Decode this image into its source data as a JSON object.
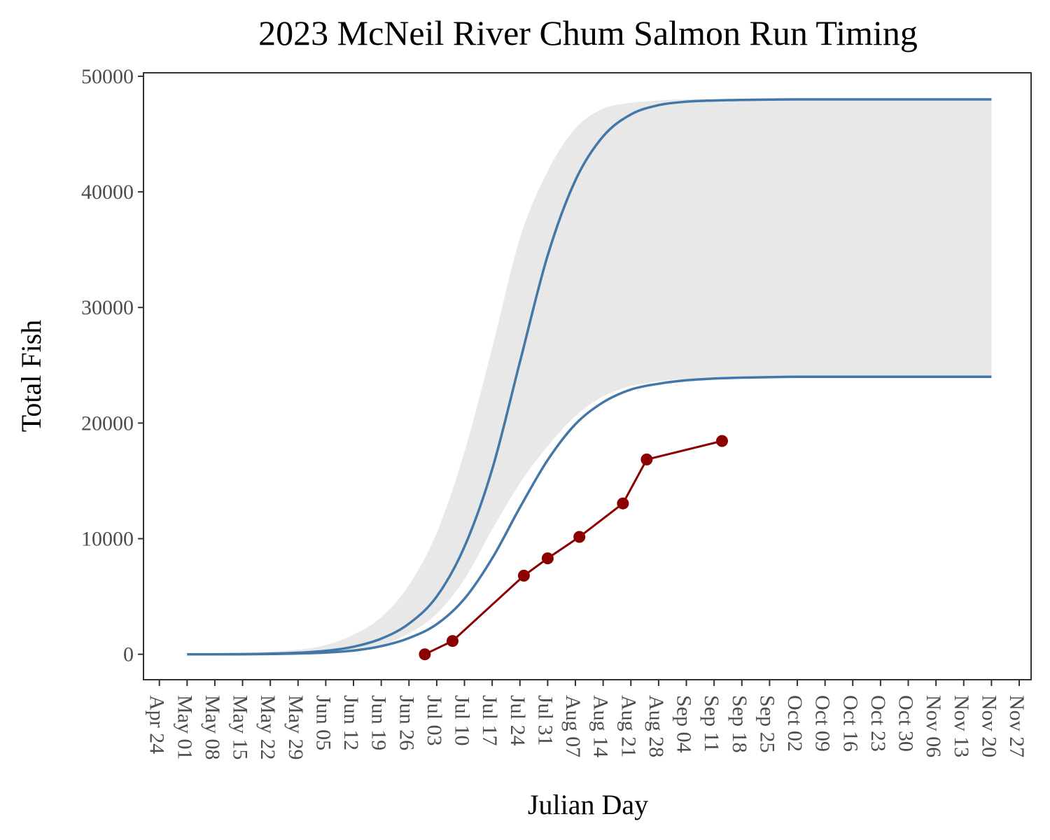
{
  "chart_data": {
    "type": "line",
    "title": "2023 McNeil River Chum Salmon Run Timing",
    "xlabel": "Julian Day",
    "ylabel": "Total Fish",
    "ylim": [
      -2200,
      50300
    ],
    "xlim": [
      "2023-04-20",
      "2023-11-30"
    ],
    "grid": false,
    "y_ticks": [
      0,
      10000,
      20000,
      30000,
      40000,
      50000
    ],
    "x_ticks": [
      "Apr 24",
      "May 01",
      "May 08",
      "May 15",
      "May 22",
      "May 29",
      "Jun 05",
      "Jun 12",
      "Jun 19",
      "Jun 26",
      "Jul 03",
      "Jul 10",
      "Jul 17",
      "Jul 24",
      "Jul 31",
      "Aug 07",
      "Aug 14",
      "Aug 21",
      "Aug 28",
      "Sep 04",
      "Sep 11",
      "Sep 18",
      "Sep 25",
      "Oct 02",
      "Oct 09",
      "Oct 16",
      "Oct 23",
      "Oct 30",
      "Nov 06",
      "Nov 13",
      "Nov 20",
      "Nov 27"
    ],
    "x_tick_dates": [
      "2023-04-24",
      "2023-05-01",
      "2023-05-08",
      "2023-05-15",
      "2023-05-22",
      "2023-05-29",
      "2023-06-05",
      "2023-06-12",
      "2023-06-19",
      "2023-06-26",
      "2023-07-03",
      "2023-07-10",
      "2023-07-17",
      "2023-07-24",
      "2023-07-31",
      "2023-08-07",
      "2023-08-14",
      "2023-08-21",
      "2023-08-28",
      "2023-09-04",
      "2023-09-11",
      "2023-09-18",
      "2023-09-25",
      "2023-10-02",
      "2023-10-09",
      "2023-10-16",
      "2023-10-23",
      "2023-10-30",
      "2023-11-06",
      "2023-11-13",
      "2023-11-20",
      "2023-11-27"
    ],
    "band": {
      "color": "#e8e8e8",
      "x": [
        "2023-05-01",
        "2023-05-15",
        "2023-05-29",
        "2023-06-05",
        "2023-06-12",
        "2023-06-19",
        "2023-06-26",
        "2023-07-03",
        "2023-07-10",
        "2023-07-17",
        "2023-07-24",
        "2023-07-31",
        "2023-08-07",
        "2023-08-14",
        "2023-08-21",
        "2023-08-28",
        "2023-09-04",
        "2023-09-18",
        "2023-10-02",
        "2023-10-30",
        "2023-11-20"
      ],
      "lower": [
        0,
        0,
        50,
        150,
        400,
        800,
        1800,
        3500,
        6500,
        10800,
        14800,
        18000,
        20600,
        22300,
        23200,
        23600,
        23800,
        23950,
        24000,
        24000,
        24000
      ],
      "upper": [
        0,
        100,
        400,
        800,
        1700,
        3200,
        6000,
        10500,
        17500,
        26500,
        36000,
        41800,
        45500,
        47200,
        47700,
        47900,
        48000,
        48000,
        48000,
        48000,
        48000
      ]
    },
    "series": [
      {
        "color": "#4277a8",
        "x": [
          "2023-05-01",
          "2023-05-08",
          "2023-05-15",
          "2023-05-22",
          "2023-05-29",
          "2023-06-05",
          "2023-06-12",
          "2023-06-19",
          "2023-06-26",
          "2023-07-03",
          "2023-07-10",
          "2023-07-17",
          "2023-07-24",
          "2023-07-31",
          "2023-08-07",
          "2023-08-14",
          "2023-08-21",
          "2023-08-28",
          "2023-09-04",
          "2023-09-11",
          "2023-09-18",
          "2023-09-25",
          "2023-10-02",
          "2023-10-16",
          "2023-10-30",
          "2023-11-13",
          "2023-11-20"
        ],
        "values": [
          0,
          0,
          10,
          50,
          130,
          300,
          650,
          1350,
          2650,
          5000,
          9300,
          16000,
          25300,
          34500,
          41000,
          44800,
          46700,
          47500,
          47800,
          47900,
          47950,
          47980,
          48000,
          48000,
          48000,
          48000,
          48000
        ]
      },
      {
        "color": "#4277a8",
        "x": [
          "2023-05-01",
          "2023-05-08",
          "2023-05-15",
          "2023-05-22",
          "2023-05-29",
          "2023-06-05",
          "2023-06-12",
          "2023-06-19",
          "2023-06-26",
          "2023-07-03",
          "2023-07-10",
          "2023-07-17",
          "2023-07-24",
          "2023-07-31",
          "2023-08-07",
          "2023-08-14",
          "2023-08-21",
          "2023-08-28",
          "2023-09-04",
          "2023-09-11",
          "2023-09-18",
          "2023-09-25",
          "2023-10-02",
          "2023-10-16",
          "2023-10-30",
          "2023-11-13",
          "2023-11-20"
        ],
        "values": [
          0,
          0,
          5,
          25,
          70,
          150,
          320,
          700,
          1400,
          2600,
          4800,
          8300,
          12700,
          16800,
          19900,
          21800,
          22900,
          23400,
          23700,
          23850,
          23930,
          23970,
          24000,
          24000,
          24000,
          24000,
          24000
        ]
      },
      {
        "color": "#8b0000",
        "markers": true,
        "x": [
          "2023-06-30",
          "2023-07-07",
          "2023-07-25",
          "2023-07-31",
          "2023-08-08",
          "2023-08-19",
          "2023-08-25",
          "2023-09-13"
        ],
        "values": [
          0,
          1150,
          6800,
          8300,
          10150,
          13050,
          16850,
          18450
        ]
      }
    ]
  }
}
